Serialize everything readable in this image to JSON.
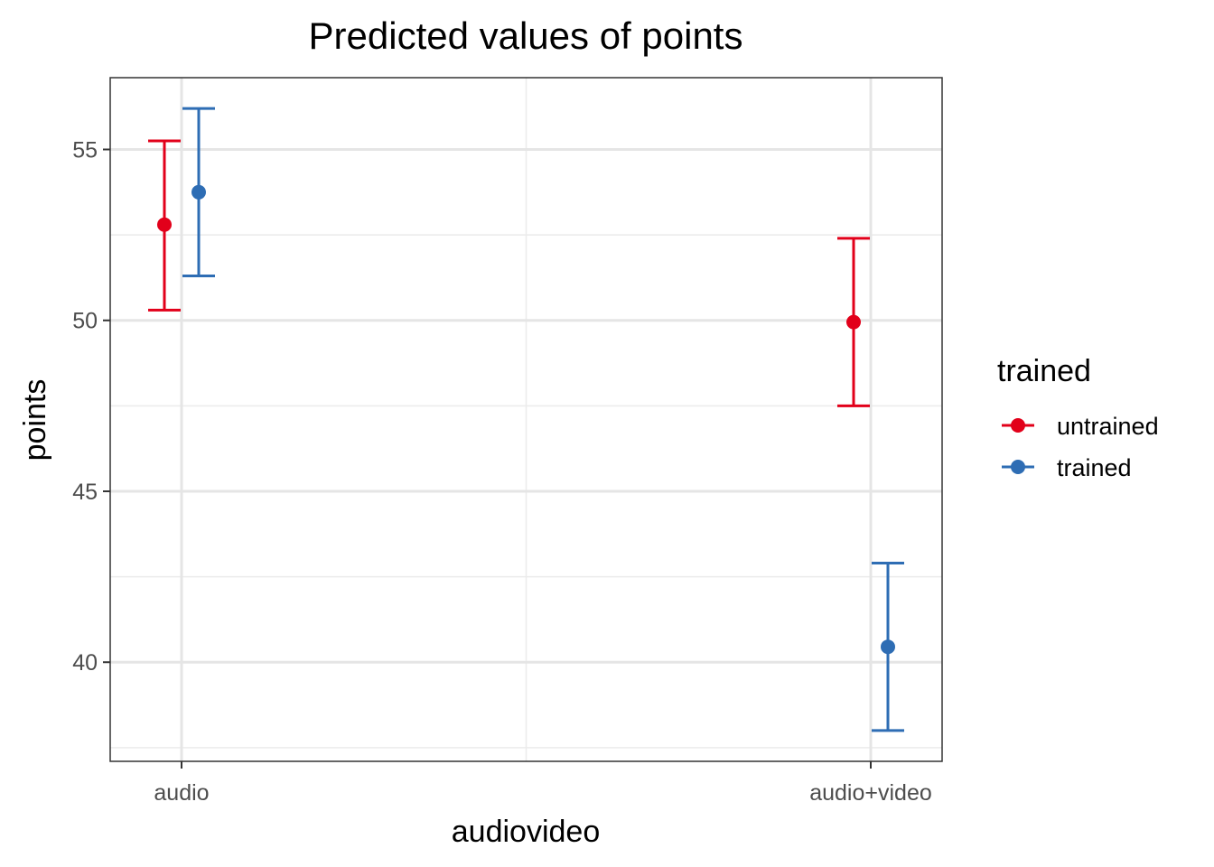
{
  "chart_data": {
    "type": "scatter",
    "title": "Predicted values of points",
    "xlabel": "audiovideo",
    "ylabel": "points",
    "categories": [
      "audio",
      "audio+video"
    ],
    "ylim": [
      37.1,
      57.1
    ],
    "yticks": [
      40,
      45,
      50,
      55
    ],
    "grid": true,
    "legend": {
      "title": "trained",
      "position": "right"
    },
    "series": [
      {
        "name": "untrained",
        "color": "#E2001A",
        "values": [
          52.8,
          49.95
        ],
        "lower": [
          50.3,
          47.5
        ],
        "upper": [
          55.25,
          52.4
        ]
      },
      {
        "name": "trained",
        "color": "#2E6DB4",
        "values": [
          53.75,
          40.45
        ],
        "lower": [
          51.3,
          38.0
        ],
        "upper": [
          56.2,
          42.9
        ]
      }
    ]
  }
}
